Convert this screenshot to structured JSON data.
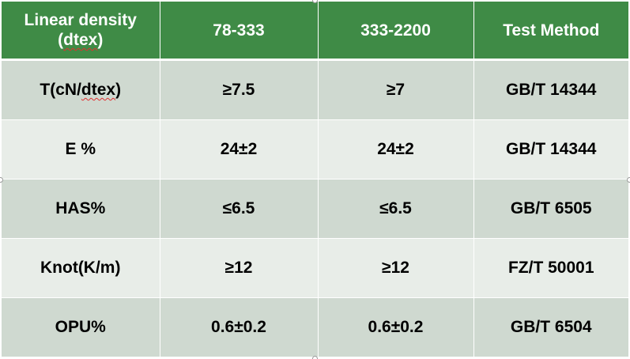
{
  "table": {
    "header": {
      "col0_line1": "Linear density",
      "col0_line2_prefix": "(",
      "col0_line2_word": "dtex",
      "col0_line2_suffix": ")",
      "col1": "78-333",
      "col2": "333-2200",
      "col3": "Test Method"
    },
    "rows": [
      {
        "label_prefix": "T(cN/",
        "label_word": "dtex",
        "label_suffix": ")",
        "v1": "≥7.5",
        "v2": "≥7",
        "method": "GB/T 14344"
      },
      {
        "label": "E %",
        "v1": "24±2",
        "v2": "24±2",
        "method": "GB/T 14344"
      },
      {
        "label": "HAS%",
        "v1": "≤6.5",
        "v2": "≤6.5",
        "method": "GB/T 6505"
      },
      {
        "label": "Knot(K/m)",
        "v1": "≥12",
        "v2": "≥12",
        "method": "FZ/T 50001"
      },
      {
        "label": "OPU%",
        "v1": "0.6±0.2",
        "v2": "0.6±0.2",
        "method": "GB/T 6504"
      }
    ]
  },
  "colors": {
    "header_bg": "#3f8b46",
    "row_odd_bg": "#cfd9d0",
    "row_even_bg": "#e8ede8",
    "spellcheck_underline": "#e03030"
  }
}
